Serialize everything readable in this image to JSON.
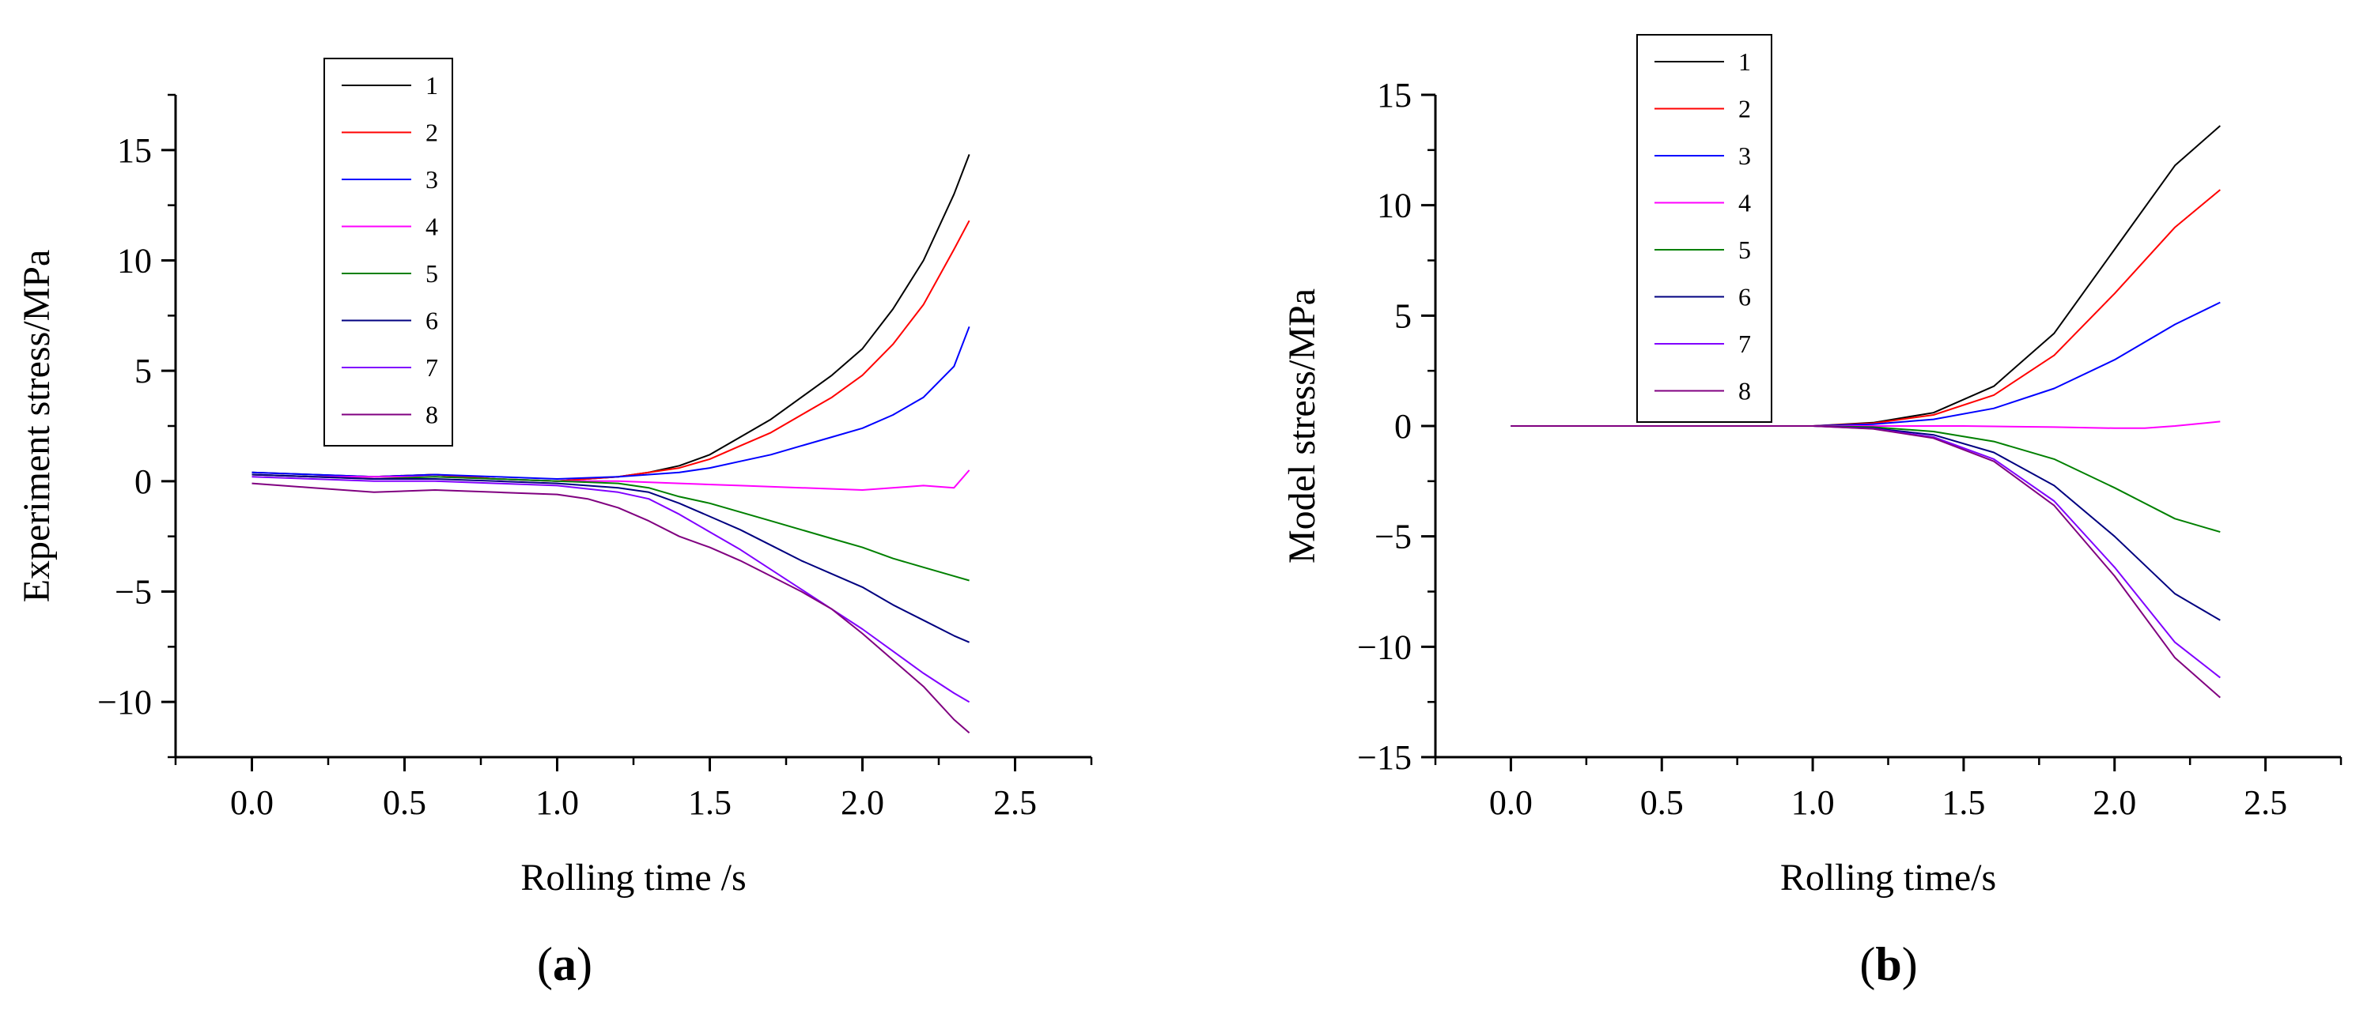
{
  "colors": {
    "1": "#000000",
    "2": "#ff0000",
    "3": "#0000ff",
    "4": "#ff00ff",
    "5": "#008000",
    "6": "#000080",
    "7": "#8000ff",
    "8": "#800080"
  },
  "chart_data": [
    {
      "type": "line",
      "panel": "a",
      "panel_label": "a",
      "xlabel": "Rolling time /s",
      "ylabel": "Experiment stress/MPa",
      "xlim": [
        -0.25,
        2.75
      ],
      "ylim": [
        -12.5,
        17.5
      ],
      "xticks": [
        "0.0",
        "0.5",
        "1.0",
        "1.5",
        "2.0",
        "2.5"
      ],
      "yticks": [
        "−10",
        "−5",
        "0",
        "5",
        "10",
        "15"
      ],
      "legend_position": "top-left",
      "series": [
        {
          "name": "1",
          "x": [
            0,
            0.2,
            0.4,
            0.6,
            0.8,
            1.0,
            1.2,
            1.3,
            1.4,
            1.5,
            1.6,
            1.7,
            1.8,
            1.9,
            2.0,
            2.1,
            2.2,
            2.3,
            2.35
          ],
          "y": [
            0.4,
            0.3,
            0.2,
            0.3,
            0.1,
            0.0,
            0.2,
            0.4,
            0.7,
            1.2,
            2.0,
            2.8,
            3.8,
            4.8,
            6.0,
            7.8,
            10.0,
            13.0,
            14.8
          ]
        },
        {
          "name": "2",
          "x": [
            0,
            0.2,
            0.4,
            0.6,
            0.8,
            1.0,
            1.2,
            1.3,
            1.4,
            1.5,
            1.6,
            1.7,
            1.8,
            1.9,
            2.0,
            2.1,
            2.2,
            2.3,
            2.35
          ],
          "y": [
            0.3,
            0.2,
            0.2,
            0.3,
            0.1,
            0.0,
            0.2,
            0.4,
            0.6,
            1.0,
            1.6,
            2.2,
            3.0,
            3.8,
            4.8,
            6.2,
            8.0,
            10.5,
            11.8
          ]
        },
        {
          "name": "3",
          "x": [
            0,
            0.2,
            0.4,
            0.6,
            0.8,
            1.0,
            1.2,
            1.3,
            1.4,
            1.5,
            1.6,
            1.7,
            1.8,
            1.9,
            2.0,
            2.1,
            2.2,
            2.3,
            2.35
          ],
          "y": [
            0.4,
            0.3,
            0.2,
            0.3,
            0.2,
            0.1,
            0.2,
            0.3,
            0.4,
            0.6,
            0.9,
            1.2,
            1.6,
            2.0,
            2.4,
            3.0,
            3.8,
            5.2,
            7.0
          ]
        },
        {
          "name": "4",
          "x": [
            0,
            0.2,
            0.4,
            0.6,
            0.8,
            1.0,
            1.2,
            1.4,
            1.6,
            1.8,
            2.0,
            2.2,
            2.3,
            2.35
          ],
          "y": [
            0.3,
            0.2,
            0.2,
            0.2,
            0.1,
            0.0,
            0.0,
            -0.1,
            -0.2,
            -0.3,
            -0.4,
            -0.2,
            -0.3,
            0.5
          ]
        },
        {
          "name": "5",
          "x": [
            0,
            0.2,
            0.4,
            0.6,
            0.8,
            1.0,
            1.2,
            1.3,
            1.4,
            1.5,
            1.6,
            1.7,
            1.8,
            1.9,
            2.0,
            2.1,
            2.2,
            2.3,
            2.35
          ],
          "y": [
            0.3,
            0.2,
            0.1,
            0.2,
            0.1,
            0.0,
            -0.1,
            -0.3,
            -0.7,
            -1.0,
            -1.4,
            -1.8,
            -2.2,
            -2.6,
            -3.0,
            -3.5,
            -3.9,
            -4.3,
            -4.5
          ]
        },
        {
          "name": "6",
          "x": [
            0,
            0.2,
            0.4,
            0.6,
            0.8,
            1.0,
            1.2,
            1.3,
            1.4,
            1.5,
            1.6,
            1.7,
            1.8,
            1.9,
            2.0,
            2.1,
            2.2,
            2.3,
            2.35
          ],
          "y": [
            0.3,
            0.2,
            0.1,
            0.1,
            0.0,
            -0.1,
            -0.3,
            -0.5,
            -1.0,
            -1.6,
            -2.2,
            -2.9,
            -3.6,
            -4.2,
            -4.8,
            -5.6,
            -6.3,
            -7.0,
            -7.3
          ]
        },
        {
          "name": "7",
          "x": [
            0,
            0.2,
            0.4,
            0.6,
            0.8,
            1.0,
            1.2,
            1.3,
            1.4,
            1.5,
            1.6,
            1.7,
            1.8,
            1.9,
            2.0,
            2.1,
            2.2,
            2.3,
            2.35
          ],
          "y": [
            0.2,
            0.1,
            0.0,
            0.0,
            -0.1,
            -0.2,
            -0.5,
            -0.8,
            -1.5,
            -2.3,
            -3.1,
            -4.0,
            -4.9,
            -5.8,
            -6.7,
            -7.7,
            -8.7,
            -9.6,
            -10.0
          ]
        },
        {
          "name": "8",
          "x": [
            0,
            0.2,
            0.4,
            0.6,
            0.8,
            1.0,
            1.1,
            1.2,
            1.3,
            1.4,
            1.5,
            1.6,
            1.7,
            1.8,
            1.9,
            2.0,
            2.1,
            2.2,
            2.3,
            2.35
          ],
          "y": [
            -0.1,
            -0.3,
            -0.5,
            -0.4,
            -0.5,
            -0.6,
            -0.8,
            -1.2,
            -1.8,
            -2.5,
            -3.0,
            -3.6,
            -4.3,
            -5.0,
            -5.8,
            -6.9,
            -8.1,
            -9.3,
            -10.8,
            -11.4
          ]
        }
      ]
    },
    {
      "type": "line",
      "panel": "b",
      "panel_label": "b",
      "xlabel": "Rolling time/s",
      "ylabel": "Model stress/MPa",
      "xlim": [
        -0.25,
        2.75
      ],
      "ylim": [
        -15,
        15
      ],
      "xticks": [
        "0.0",
        "0.5",
        "1.0",
        "1.5",
        "2.0",
        "2.5"
      ],
      "yticks": [
        "−15",
        "−10",
        "−5",
        "0",
        "5",
        "10",
        "15"
      ],
      "legend_position": "top-left",
      "series": [
        {
          "name": "1",
          "x": [
            0,
            0.5,
            1.0,
            1.2,
            1.4,
            1.6,
            1.8,
            2.0,
            2.2,
            2.35
          ],
          "y": [
            0,
            0,
            0,
            0.15,
            0.6,
            1.8,
            4.2,
            8.0,
            11.8,
            13.6
          ]
        },
        {
          "name": "2",
          "x": [
            0,
            0.5,
            1.0,
            1.2,
            1.4,
            1.6,
            1.8,
            2.0,
            2.2,
            2.35
          ],
          "y": [
            0,
            0,
            0,
            0.12,
            0.5,
            1.4,
            3.2,
            6.0,
            9.0,
            10.7
          ]
        },
        {
          "name": "3",
          "x": [
            0,
            0.5,
            1.0,
            1.2,
            1.4,
            1.6,
            1.8,
            2.0,
            2.2,
            2.35
          ],
          "y": [
            0,
            0,
            0,
            0.08,
            0.3,
            0.8,
            1.7,
            3.0,
            4.6,
            5.6
          ]
        },
        {
          "name": "4",
          "x": [
            0,
            0.5,
            1.0,
            1.5,
            1.8,
            2.0,
            2.1,
            2.2,
            2.35
          ],
          "y": [
            0,
            0,
            0,
            0,
            -0.05,
            -0.1,
            -0.1,
            0.0,
            0.2
          ]
        },
        {
          "name": "5",
          "x": [
            0,
            0.5,
            1.0,
            1.2,
            1.4,
            1.6,
            1.8,
            2.0,
            2.2,
            2.35
          ],
          "y": [
            0,
            0,
            0,
            -0.05,
            -0.25,
            -0.7,
            -1.5,
            -2.8,
            -4.2,
            -4.8
          ]
        },
        {
          "name": "6",
          "x": [
            0,
            0.5,
            1.0,
            1.2,
            1.4,
            1.6,
            1.8,
            2.0,
            2.2,
            2.35
          ],
          "y": [
            0,
            0,
            0,
            -0.1,
            -0.4,
            -1.2,
            -2.7,
            -5.0,
            -7.6,
            -8.8
          ]
        },
        {
          "name": "7",
          "x": [
            0,
            0.5,
            1.0,
            1.2,
            1.4,
            1.6,
            1.8,
            2.0,
            2.2,
            2.35
          ],
          "y": [
            0,
            0,
            0,
            -0.12,
            -0.5,
            -1.5,
            -3.4,
            -6.4,
            -9.8,
            -11.4
          ]
        },
        {
          "name": "8",
          "x": [
            0,
            0.5,
            1.0,
            1.2,
            1.4,
            1.6,
            1.8,
            2.0,
            2.2,
            2.35
          ],
          "y": [
            0,
            0,
            0,
            -0.13,
            -0.55,
            -1.6,
            -3.6,
            -6.8,
            -10.5,
            -12.3
          ]
        }
      ]
    }
  ]
}
